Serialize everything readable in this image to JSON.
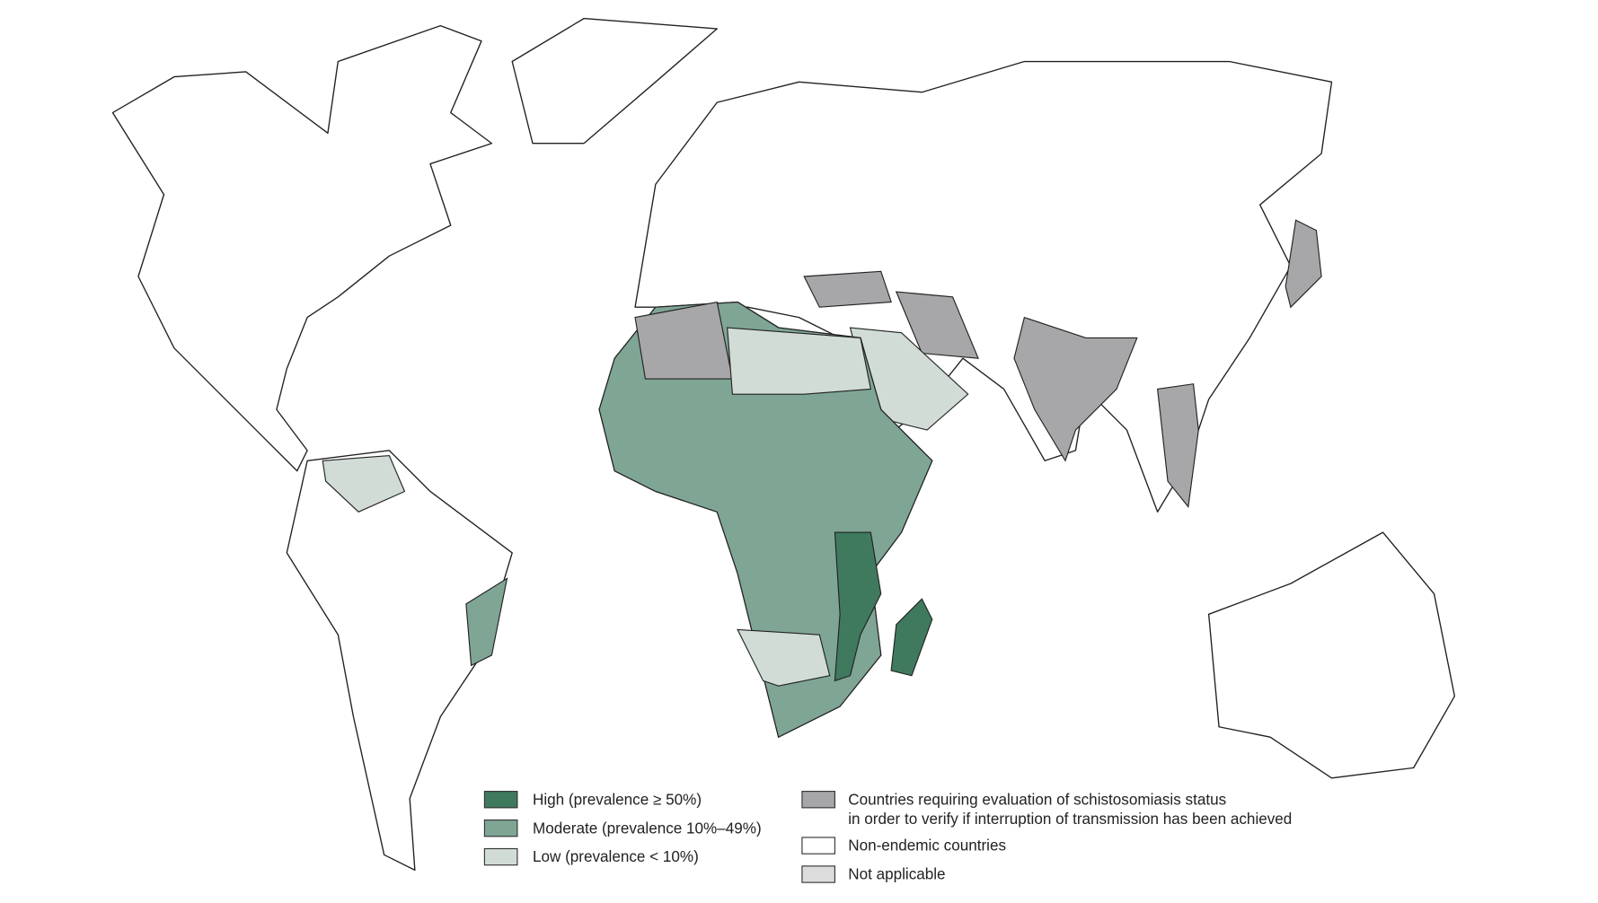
{
  "legend": {
    "items": [
      {
        "color": "#3f7a5f",
        "lines": [
          "High (prevalence ≥ 50%)"
        ]
      },
      {
        "color": "#7fa595",
        "lines": [
          "Moderate (prevalence 10%–49%)"
        ]
      },
      {
        "color": "#d1dcd6",
        "lines": [
          "Low (prevalence < 10%)"
        ]
      },
      {
        "color": "#a7a7a9",
        "lines": [
          "Countries requiring evaluation of schistosomiasis status",
          "in order to verify if interruption of transmission has been achieved"
        ]
      },
      {
        "color": "#ffffff",
        "lines": [
          "Non-endemic countries"
        ]
      },
      {
        "color": "#dcdcdc",
        "lines": [
          "Not applicable"
        ]
      }
    ]
  }
}
